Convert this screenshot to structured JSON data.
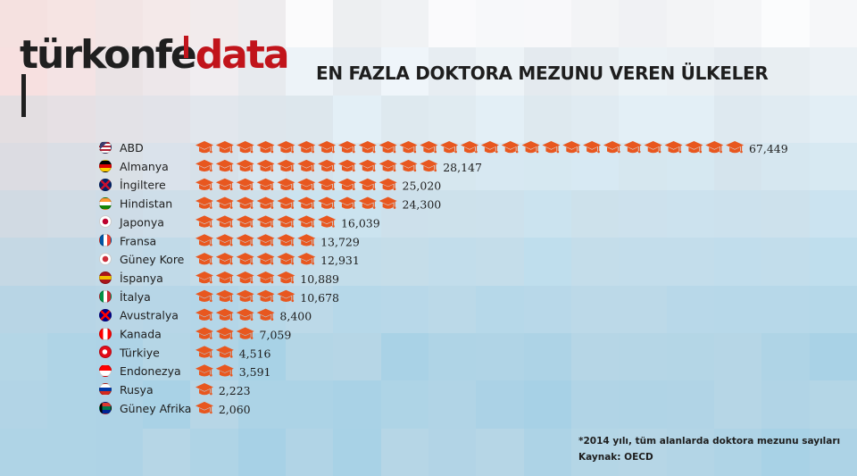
{
  "brand": {
    "logo_dark": "türkonfe",
    "logo_accent": "data",
    "accent_color": "#c1141b"
  },
  "title": "EN FAZLA DOKTORA MEZUNU VEREN ÜLKELER",
  "chart_data": {
    "type": "bar",
    "title": "EN FAZLA DOKTORA MEZUNU VEREN ÜLKELER",
    "xlabel": "",
    "ylabel": "",
    "bar_style": "pictogram",
    "icon": "graduation-cap-icon",
    "icon_color": "#e8571f",
    "units_per_icon": 2500,
    "grid": false,
    "categories": [
      "ABD",
      "Almanya",
      "İngiltere",
      "Hindistan",
      "Japonya",
      "Fransa",
      "Güney Kore",
      "İspanya",
      "İtalya",
      "Avustralya",
      "Kanada",
      "Türkiye",
      "Endonezya",
      "Rusya",
      "Güney Afrika"
    ],
    "values": [
      67449,
      28147,
      25020,
      24300,
      16039,
      13729,
      12931,
      10889,
      10678,
      8400,
      7059,
      4516,
      3591,
      2223,
      2060
    ],
    "value_labels": [
      "67,449",
      "28,147",
      "25,020",
      "24,300",
      "16,039",
      "13,729",
      "12,931",
      "10,889",
      "10,678",
      "8,400",
      "7,059",
      "4,516",
      "3,591",
      "2,223",
      "2,060"
    ],
    "flags": [
      "flag-us-icon",
      "flag-de-icon",
      "flag-gb-icon",
      "flag-in-icon",
      "flag-jp-icon",
      "flag-fr-icon",
      "flag-kr-icon",
      "flag-es-icon",
      "flag-it-icon",
      "flag-au-icon",
      "flag-ca-icon",
      "flag-tr-icon",
      "flag-id-icon",
      "flag-ru-icon",
      "flag-za-icon"
    ]
  },
  "footnote": "*2014 yılı, tüm alanlarda doktora mezunu sayıları",
  "source": "Kaynak: OECD"
}
